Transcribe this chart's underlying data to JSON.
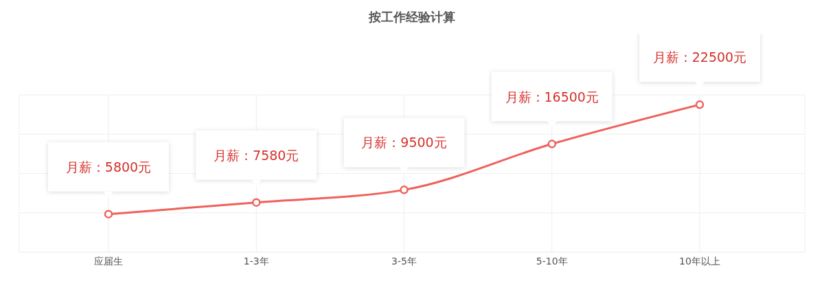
{
  "chart_data": {
    "type": "line",
    "title": "按工作经验计算",
    "categories": [
      "应届生",
      "1-3年",
      "3-5年",
      "5-10年",
      "10年以上"
    ],
    "series": [
      {
        "color": "#f0605a",
        "values": [
          5800,
          7580,
          9500,
          16500,
          22500
        ],
        "value_labels": [
          "月薪：5800元",
          "月薪：7580元",
          "月薪：9500元",
          "月薪：16500元",
          "月薪：22500元"
        ]
      }
    ],
    "marker": "circle",
    "grid": true
  }
}
